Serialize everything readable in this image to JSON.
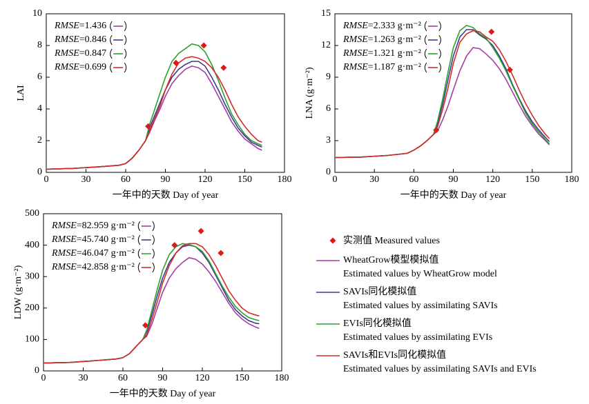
{
  "chart_data": [
    {
      "type": "line",
      "ylabel": "LAI",
      "xlabel": "一年中的天数 Day of year",
      "xlim": [
        0,
        180
      ],
      "xticks": [
        0,
        30,
        60,
        90,
        120,
        150,
        180
      ],
      "ylim": [
        0,
        10
      ],
      "yticks": [
        0,
        2,
        4,
        6,
        8,
        10
      ],
      "x": [
        0,
        20,
        40,
        55,
        60,
        65,
        70,
        75,
        78,
        82,
        86,
        90,
        95,
        100,
        105,
        110,
        115,
        120,
        125,
        130,
        135,
        140,
        145,
        150,
        155,
        160,
        163
      ],
      "series": [
        {
          "name": "WheatGrow模型模拟值",
          "color": "#a43ca4",
          "values": [
            0.2,
            0.25,
            0.35,
            0.45,
            0.55,
            0.9,
            1.4,
            2.0,
            2.5,
            3.3,
            4.0,
            4.8,
            5.6,
            6.1,
            6.5,
            6.7,
            6.6,
            6.3,
            5.6,
            4.8,
            4.0,
            3.2,
            2.6,
            2.1,
            1.8,
            1.5,
            1.4
          ]
        },
        {
          "name": "SAVIs同化模拟值",
          "color": "#3a3a8c",
          "values": [
            0.2,
            0.25,
            0.35,
            0.45,
            0.55,
            0.9,
            1.4,
            2.0,
            2.8,
            3.6,
            4.4,
            5.2,
            6.0,
            6.5,
            6.8,
            7.0,
            7.0,
            6.7,
            6.0,
            5.2,
            4.3,
            3.5,
            2.8,
            2.3,
            1.9,
            1.7,
            1.6
          ]
        },
        {
          "name": "EVIs同化模拟值",
          "color": "#2ca02c",
          "values": [
            0.2,
            0.25,
            0.35,
            0.45,
            0.55,
            0.9,
            1.4,
            2.0,
            3.0,
            4.0,
            5.0,
            6.0,
            7.0,
            7.5,
            7.8,
            8.1,
            8.0,
            7.6,
            6.8,
            5.8,
            4.7,
            3.7,
            3.0,
            2.4,
            2.0,
            1.8,
            1.7
          ]
        },
        {
          "name": "SAVIs和EVIs同化模拟值",
          "color": "#d42a2a",
          "values": [
            0.2,
            0.25,
            0.35,
            0.45,
            0.55,
            0.9,
            1.4,
            2.0,
            2.6,
            3.4,
            4.2,
            5.2,
            6.2,
            6.9,
            7.2,
            7.3,
            7.2,
            7.0,
            6.6,
            6.0,
            5.2,
            4.3,
            3.5,
            2.9,
            2.4,
            2.0,
            1.9
          ]
        }
      ],
      "measured": {
        "name": "实测值 Measured values",
        "color": "#e01818",
        "x": [
          77,
          98,
          119,
          134
        ],
        "values": [
          2.9,
          6.9,
          8.0,
          6.6
        ]
      },
      "annotations": [
        {
          "label": "RMSE",
          "text": "=1.436"
        },
        {
          "label": "RMSE",
          "text": "=0.846"
        },
        {
          "label": "RMSE",
          "text": "=0.847"
        },
        {
          "label": "RMSE",
          "text": "=0.699"
        }
      ]
    },
    {
      "type": "line",
      "ylabel": "LNA (g·m⁻²)",
      "xlabel": "一年中的天数 Day of year",
      "xlim": [
        0,
        180
      ],
      "xticks": [
        0,
        30,
        60,
        90,
        120,
        150,
        180
      ],
      "ylim": [
        0,
        15
      ],
      "yticks": [
        0,
        3,
        6,
        9,
        12,
        15
      ],
      "x": [
        0,
        20,
        40,
        55,
        60,
        65,
        70,
        75,
        78,
        82,
        86,
        90,
        95,
        100,
        105,
        110,
        115,
        120,
        125,
        130,
        135,
        140,
        145,
        150,
        155,
        160,
        163
      ],
      "series": [
        {
          "name": "WheatGrow模型模拟值",
          "color": "#a43ca4",
          "values": [
            1.4,
            1.45,
            1.6,
            1.8,
            2.1,
            2.5,
            3.0,
            3.6,
            3.9,
            5.0,
            6.3,
            7.8,
            9.6,
            11.0,
            11.8,
            11.7,
            11.2,
            10.6,
            9.8,
            8.8,
            7.6,
            6.4,
            5.3,
            4.4,
            3.6,
            3.0,
            2.6
          ]
        },
        {
          "name": "SAVIs同化模拟值",
          "color": "#3a3a8c",
          "values": [
            1.4,
            1.45,
            1.6,
            1.8,
            2.1,
            2.5,
            3.0,
            3.6,
            4.6,
            6.5,
            8.8,
            11.0,
            12.8,
            13.5,
            13.5,
            13.0,
            12.6,
            12.0,
            11.0,
            9.8,
            8.3,
            7.0,
            5.8,
            4.8,
            4.0,
            3.3,
            2.9
          ]
        },
        {
          "name": "EVIs同化模拟值",
          "color": "#2ca02c",
          "values": [
            1.4,
            1.45,
            1.6,
            1.8,
            2.1,
            2.5,
            3.0,
            3.6,
            4.8,
            7.0,
            9.5,
            11.8,
            13.4,
            13.9,
            13.7,
            13.1,
            12.7,
            11.8,
            10.8,
            9.6,
            8.2,
            6.9,
            5.6,
            4.6,
            3.8,
            3.1,
            2.7
          ]
        },
        {
          "name": "SAVIs和EVIs同化模拟值",
          "color": "#d42a2a",
          "values": [
            1.4,
            1.45,
            1.6,
            1.8,
            2.1,
            2.5,
            3.0,
            3.6,
            4.3,
            6.0,
            8.0,
            10.3,
            12.3,
            13.1,
            13.4,
            13.3,
            12.8,
            12.4,
            11.6,
            10.5,
            9.2,
            7.8,
            6.5,
            5.4,
            4.4,
            3.6,
            3.2
          ]
        }
      ],
      "measured": {
        "name": "实测值 Measured values",
        "color": "#e01818",
        "x": [
          77,
          119,
          133
        ],
        "values": [
          4.0,
          13.3,
          9.7
        ]
      },
      "annotations": [
        {
          "label": "RMSE",
          "text": "=2.333 g·m⁻²"
        },
        {
          "label": "RMSE",
          "text": "=1.263 g·m⁻²"
        },
        {
          "label": "RMSE",
          "text": "=1.321 g·m⁻²"
        },
        {
          "label": "RMSE",
          "text": "=1.187 g·m⁻²"
        }
      ]
    },
    {
      "type": "line",
      "ylabel": "LDW (g·m⁻²)",
      "xlabel": "一年中的天数 Day of year",
      "xlim": [
        0,
        180
      ],
      "xticks": [
        0,
        30,
        60,
        90,
        120,
        150,
        180
      ],
      "ylim": [
        0,
        500
      ],
      "yticks": [
        0,
        100,
        200,
        300,
        400,
        500
      ],
      "x": [
        0,
        20,
        40,
        55,
        60,
        65,
        70,
        75,
        78,
        82,
        86,
        90,
        95,
        100,
        105,
        110,
        115,
        120,
        125,
        130,
        135,
        140,
        145,
        150,
        155,
        160,
        163
      ],
      "series": [
        {
          "name": "WheatGrow模型模拟值",
          "color": "#a43ca4",
          "values": [
            25,
            27,
            33,
            38,
            42,
            55,
            78,
            100,
            110,
            150,
            200,
            250,
            295,
            325,
            345,
            360,
            355,
            340,
            315,
            285,
            250,
            215,
            185,
            165,
            150,
            140,
            135
          ]
        },
        {
          "name": "SAVIs同化模拟值",
          "color": "#3a3a8c",
          "values": [
            25,
            27,
            33,
            38,
            42,
            55,
            78,
            100,
            125,
            180,
            240,
            295,
            345,
            375,
            395,
            400,
            395,
            375,
            345,
            305,
            265,
            225,
            195,
            175,
            160,
            152,
            150
          ]
        },
        {
          "name": "EVIs同化模拟值",
          "color": "#2ca02c",
          "values": [
            25,
            27,
            33,
            38,
            42,
            55,
            78,
            100,
            130,
            195,
            260,
            320,
            370,
            395,
            405,
            402,
            395,
            380,
            350,
            310,
            270,
            235,
            205,
            185,
            170,
            163,
            160
          ]
        },
        {
          "name": "SAVIs和EVIs同化模拟值",
          "color": "#d42a2a",
          "values": [
            25,
            27,
            33,
            38,
            42,
            55,
            78,
            100,
            115,
            165,
            220,
            280,
            335,
            375,
            398,
            405,
            405,
            395,
            370,
            335,
            295,
            255,
            225,
            200,
            185,
            178,
            175
          ]
        }
      ],
      "measured": {
        "name": "实测值 Measured values",
        "color": "#e01818",
        "x": [
          77,
          99,
          119,
          134
        ],
        "values": [
          145,
          400,
          445,
          375
        ]
      },
      "annotations": [
        {
          "label": "RMSE",
          "text": "=82.959 g·m⁻²"
        },
        {
          "label": "RMSE",
          "text": "=45.740 g·m⁻²"
        },
        {
          "label": "RMSE",
          "text": "=46.047 g·m⁻²"
        },
        {
          "label": "RMSE",
          "text": "=42.858 g·m⁻²"
        }
      ]
    }
  ],
  "legend_descriptions": [
    "Estimated values by WheatGrow model",
    "Estimated values by assimilating SAVIs",
    "Estimated values by assimilating EVIs",
    "Estimated values by assimilating SAVIs and EVIs"
  ]
}
